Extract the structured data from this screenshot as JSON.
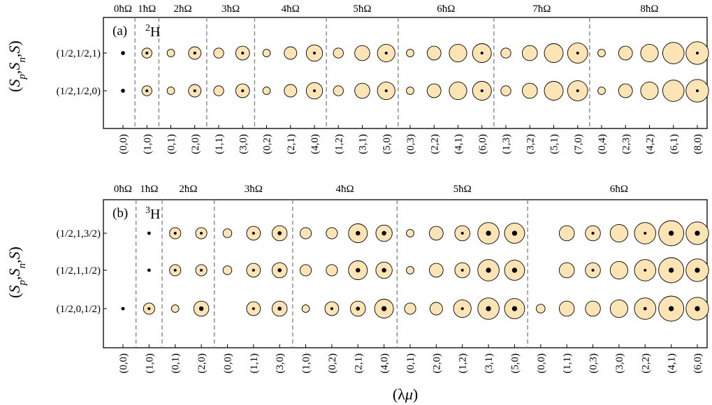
{
  "chart_data": [
    {
      "type": "bubble",
      "panel_label": "(a)",
      "nucleus": {
        "mass": "2",
        "symbol": "H"
      },
      "ylabel": "(S_p, S_n, S)",
      "xlabel": "",
      "rows": [
        "(1/2,1/2,1)",
        "(1/2,1/2,0)"
      ],
      "shells": [
        {
          "label": "0ħΩ",
          "irreps": [
            "(0,0)"
          ]
        },
        {
          "label": "1ħΩ",
          "irreps": [
            "(1,0)"
          ]
        },
        {
          "label": "2ħΩ",
          "irreps": [
            "(0,1)",
            "(2,0)"
          ]
        },
        {
          "label": "3ħΩ",
          "irreps": [
            "(1,1)",
            "(3,0)"
          ]
        },
        {
          "label": "4ħΩ",
          "irreps": [
            "(0,2)",
            "(2,1)",
            "(4,0)"
          ]
        },
        {
          "label": "5ħΩ",
          "irreps": [
            "(1,2)",
            "(3,1)",
            "(5,0)"
          ]
        },
        {
          "label": "6ħΩ",
          "irreps": [
            "(0,3)",
            "(2,2)",
            "(4,1)",
            "(6,0)"
          ]
        },
        {
          "label": "7ħΩ",
          "irreps": [
            "(1,3)",
            "(3,2)",
            "(5,1)",
            "(7,0)"
          ]
        },
        {
          "label": "8ħΩ",
          "irreps": [
            "(0,4)",
            "(2,3)",
            "(4,2)",
            "(6,1)",
            "(8,0)"
          ]
        }
      ],
      "outer_size": [
        [
          0,
          0.4,
          0.3,
          0.5,
          0.4,
          0.55,
          0.3,
          0.5,
          0.65,
          0.4,
          0.6,
          0.7,
          0.3,
          0.55,
          0.7,
          0.75,
          0.4,
          0.6,
          0.75,
          0.8,
          0.3,
          0.55,
          0.7,
          0.85,
          0.9
        ],
        [
          0,
          0.4,
          0.3,
          0.5,
          0.4,
          0.55,
          0.3,
          0.5,
          0.65,
          0.4,
          0.6,
          0.7,
          0.3,
          0.55,
          0.7,
          0.75,
          0.4,
          0.6,
          0.75,
          0.8,
          0.3,
          0.55,
          0.7,
          0.85,
          0.9
        ]
      ],
      "inner_size": [
        [
          0.35,
          0.25,
          0,
          0.25,
          0,
          0.25,
          0,
          0,
          0.25,
          0,
          0,
          0.25,
          0,
          0,
          0,
          0.25,
          0,
          0,
          0,
          0.25,
          0,
          0,
          0,
          0,
          0.25
        ],
        [
          0.35,
          0.25,
          0,
          0.25,
          0,
          0.25,
          0,
          0,
          0.25,
          0,
          0,
          0.25,
          0,
          0,
          0,
          0.25,
          0,
          0,
          0,
          0.25,
          0,
          0,
          0,
          0,
          0.25
        ]
      ],
      "colors": {
        "outer_fill": "#fde4b4",
        "inner_fill": "#000000",
        "divider": "#808080"
      }
    },
    {
      "type": "bubble",
      "panel_label": "(b)",
      "nucleus": {
        "mass": "3",
        "symbol": "H"
      },
      "ylabel": "(S_p, S_n, S)",
      "xlabel": "(λμ)",
      "rows": [
        "(1/2,1,3/2)",
        "(1/2,1,1/2)",
        "(1/2,0,1/2)"
      ],
      "shells": [
        {
          "label": "0ħΩ",
          "irreps": [
            "(0,0)"
          ]
        },
        {
          "label": "1ħΩ",
          "irreps": [
            "(1,0)"
          ]
        },
        {
          "label": "2ħΩ",
          "irreps": [
            "(0,1)",
            "(2,0)"
          ]
        },
        {
          "label": "3ħΩ",
          "irreps": [
            "(0,0)",
            "(1,1)",
            "(3,0)"
          ]
        },
        {
          "label": "4ħΩ",
          "irreps": [
            "(1,0)",
            "(0,2)",
            "(2,1)",
            "(4,0)"
          ]
        },
        {
          "label": "5ħΩ",
          "irreps": [
            "(0,1)",
            "(2,0)",
            "(1,2)",
            "(3,1)",
            "(5,0)"
          ]
        },
        {
          "label": "6ħΩ",
          "irreps": [
            "(0,0)",
            "(1,1)",
            "(0,3)",
            "(3,0)",
            "(2,2)",
            "(4,1)",
            "(6,0)"
          ]
        }
      ],
      "outer_size": [
        [
          0,
          0,
          0.45,
          0.45,
          0.35,
          0.55,
          0.6,
          0.45,
          0.45,
          0.75,
          0.65,
          0.3,
          0.55,
          0.6,
          0.85,
          0.8,
          0,
          0.6,
          0.6,
          0.7,
          0.85,
          1.0,
          0.9
        ],
        [
          0,
          0,
          0.45,
          0.45,
          0.35,
          0.55,
          0.6,
          0.45,
          0.45,
          0.75,
          0.65,
          0.3,
          0.55,
          0.6,
          0.85,
          0.8,
          0,
          0.6,
          0.6,
          0.7,
          0.85,
          1.0,
          0.9
        ],
        [
          0,
          0.45,
          0.3,
          0.6,
          0,
          0.55,
          0.6,
          0.3,
          0.55,
          0.6,
          0.75,
          0.45,
          0.5,
          0.7,
          0.85,
          0.8,
          0.35,
          0.6,
          0.6,
          0.7,
          0.85,
          1.0,
          0.9
        ]
      ],
      "inner_size": [
        [
          0,
          0.3,
          0.25,
          0.25,
          0,
          0.25,
          0.35,
          0,
          0,
          0.4,
          0.4,
          0,
          0,
          0.25,
          0.45,
          0.45,
          0,
          0,
          0.25,
          0,
          0.25,
          0.45,
          0.45
        ],
        [
          0,
          0.3,
          0.25,
          0.25,
          0,
          0.25,
          0.35,
          0,
          0,
          0.4,
          0.4,
          0,
          0,
          0.25,
          0.45,
          0.45,
          0,
          0,
          0.25,
          0,
          0.25,
          0.45,
          0.45
        ],
        [
          0.3,
          0.25,
          0,
          0.4,
          0,
          0.25,
          0.35,
          0,
          0.25,
          0.35,
          0.45,
          0,
          0,
          0.25,
          0.45,
          0.45,
          0,
          0,
          0,
          0,
          0.3,
          0.45,
          0.45
        ]
      ],
      "colors": {
        "outer_fill": "#fde4b4",
        "inner_fill": "#000000",
        "divider": "#808080"
      }
    }
  ]
}
